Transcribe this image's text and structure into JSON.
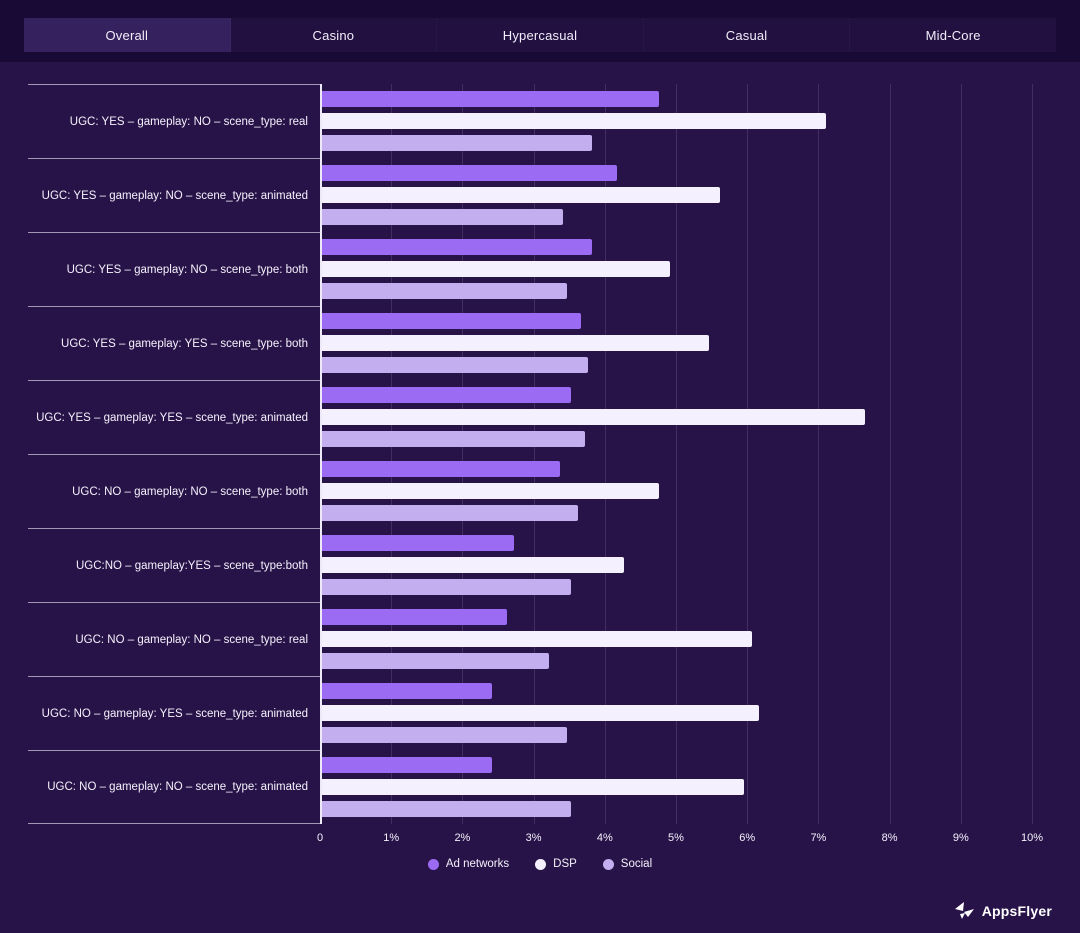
{
  "tabs": [
    {
      "label": "Overall",
      "active": true
    },
    {
      "label": "Casino",
      "active": false
    },
    {
      "label": "Hypercasual",
      "active": false
    },
    {
      "label": "Casual",
      "active": false
    },
    {
      "label": "Mid-Core",
      "active": false
    }
  ],
  "colors": {
    "background": "#281349",
    "header_bg": "#190935",
    "tabbar_bg": "#211040",
    "tab_active_bg": "#35215d",
    "ad_networks": "#9b6bf3",
    "dsp": "#f5f0fe",
    "social": "#c3aef0",
    "gridline": "rgba(255,255,255,0.12)",
    "axis_line": "#eee9f9"
  },
  "chart_data": {
    "type": "bar",
    "orientation": "horizontal",
    "title": "",
    "xlabel": "",
    "ylabel": "",
    "xlim": [
      0,
      10
    ],
    "grid": true,
    "legend_position": "bottom",
    "x_ticks": [
      "0",
      "1%",
      "2%",
      "3%",
      "4%",
      "5%",
      "6%",
      "7%",
      "8%",
      "9%",
      "10%"
    ],
    "categories": [
      "UGC: YES – gameplay: NO – scene_type: real",
      "UGC: YES – gameplay: NO – scene_type: animated",
      "UGC: YES – gameplay: NO – scene_type: both",
      "UGC: YES – gameplay: YES – scene_type: both",
      "UGC: YES – gameplay: YES – scene_type: animated",
      "UGC: NO – gameplay: NO – scene_type: both",
      "UGC:NO – gameplay:YES – scene_type:both",
      "UGC: NO – gameplay: NO – scene_type: real",
      "UGC: NO – gameplay: YES – scene_type: animated",
      "UGC: NO – gameplay: NO – scene_type: animated"
    ],
    "series": [
      {
        "name": "Ad networks",
        "color_key": "ad_networks",
        "values": [
          4.75,
          4.15,
          3.8,
          3.65,
          3.5,
          3.35,
          2.7,
          2.6,
          2.4,
          2.4
        ]
      },
      {
        "name": "DSP",
        "color_key": "dsp",
        "values": [
          7.1,
          5.6,
          4.9,
          5.45,
          7.65,
          4.75,
          4.25,
          6.05,
          6.15,
          5.95
        ]
      },
      {
        "name": "Social",
        "color_key": "social",
        "values": [
          3.8,
          3.4,
          3.45,
          3.75,
          3.7,
          3.6,
          3.5,
          3.2,
          3.45,
          3.5
        ]
      }
    ]
  },
  "footer": {
    "brand": "AppsFlyer"
  }
}
